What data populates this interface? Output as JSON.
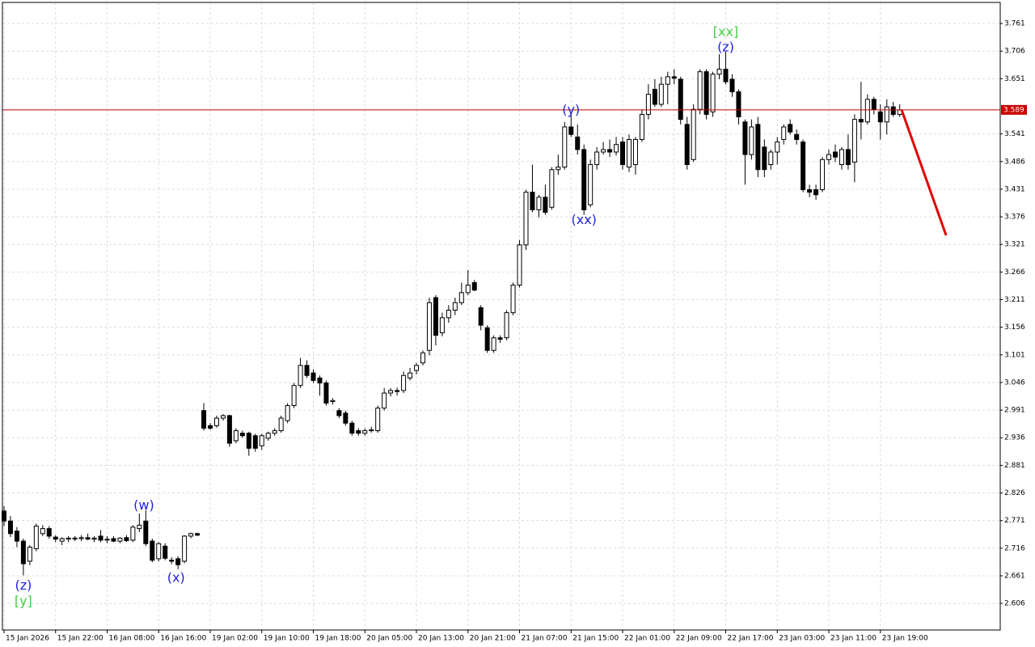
{
  "chart_data": {
    "type": "candlestick",
    "categories": [
      "15 Jan 2026",
      null,
      null,
      null,
      null,
      null,
      null,
      null,
      "15 Jan 22:00",
      null,
      null,
      null,
      null,
      null,
      null,
      null,
      "16 Jan 08:00",
      null,
      null,
      null,
      null,
      null,
      null,
      null,
      "16 Jan 16:00",
      null,
      null,
      null,
      null,
      null,
      null,
      null,
      "19 Jan 02:00",
      null,
      null,
      null,
      null,
      null,
      null,
      null,
      "19 Jan 10:00",
      null,
      null,
      null,
      null,
      null,
      null,
      null,
      "19 Jan 18:00",
      null,
      null,
      null,
      null,
      null,
      null,
      null,
      "20 Jan 05:00",
      null,
      null,
      null,
      null,
      null,
      null,
      null,
      "20 Jan 13:00",
      null,
      null,
      null,
      null,
      null,
      null,
      null,
      "20 Jan 21:00",
      null,
      null,
      null,
      null,
      null,
      null,
      null,
      "21 Jan 07:00",
      null,
      null,
      null,
      null,
      null,
      null,
      null,
      "21 Jan 15:00",
      null,
      null,
      null,
      null,
      null,
      null,
      null,
      "22 Jan 01:00",
      null,
      null,
      null,
      null,
      null,
      null,
      null,
      "22 Jan 09:00",
      null,
      null,
      null,
      null,
      null,
      null,
      null,
      "22 Jan 17:00",
      null,
      null,
      null,
      null,
      null,
      null,
      null,
      "23 Jan 03:00",
      null,
      null,
      null,
      null,
      null,
      null,
      null,
      "23 Jan 11:00",
      null,
      null,
      null,
      null,
      null,
      null,
      null,
      "23 Jan 19:00",
      null,
      null,
      null
    ],
    "values": [
      [
        2.79,
        2.8,
        2.76,
        2.77
      ],
      [
        2.77,
        2.78,
        2.738,
        2.745
      ],
      [
        2.75,
        2.758,
        2.718,
        2.73
      ],
      [
        2.73,
        2.735,
        2.662,
        2.685
      ],
      [
        2.69,
        2.722,
        2.682,
        2.718
      ],
      [
        2.715,
        2.765,
        2.71,
        2.76
      ],
      [
        2.745,
        2.762,
        2.74,
        2.755
      ],
      [
        2.755,
        2.76,
        2.735,
        2.74
      ],
      [
        2.738,
        2.742,
        2.728,
        2.734
      ],
      [
        2.73,
        2.738,
        2.722,
        2.735
      ],
      [
        2.734,
        2.74,
        2.728,
        2.736
      ],
      [
        2.736,
        2.74,
        2.73,
        2.735
      ],
      [
        2.735,
        2.742,
        2.73,
        2.737
      ],
      [
        2.737,
        2.745,
        2.732,
        2.734
      ],
      [
        2.734,
        2.74,
        2.728,
        2.736
      ],
      [
        2.74,
        2.752,
        2.728,
        2.732
      ],
      [
        2.732,
        2.74,
        2.726,
        2.734
      ],
      [
        2.735,
        2.74,
        2.728,
        2.73
      ],
      [
        2.73,
        2.738,
        2.726,
        2.736
      ],
      [
        2.737,
        2.742,
        2.728,
        2.731
      ],
      [
        2.732,
        2.762,
        2.728,
        2.758
      ],
      [
        2.755,
        2.785,
        2.748,
        2.762
      ],
      [
        2.77,
        2.792,
        2.72,
        2.725
      ],
      [
        2.73,
        2.735,
        2.688,
        2.692
      ],
      [
        2.695,
        2.728,
        2.69,
        2.725
      ],
      [
        2.72,
        2.726,
        2.692,
        2.696
      ],
      [
        2.692,
        2.698,
        2.684,
        2.69
      ],
      [
        2.695,
        2.7,
        2.674,
        2.683
      ],
      [
        2.69,
        2.742,
        2.686,
        2.74
      ],
      [
        2.74,
        2.747,
        2.736,
        2.745
      ],
      [
        2.745,
        2.747,
        2.74,
        2.742
      ],
      [
        2.99,
        3.005,
        2.95,
        2.955
      ],
      [
        2.96,
        2.965,
        2.952,
        2.955
      ],
      [
        2.96,
        2.98,
        2.956,
        2.975
      ],
      [
        2.975,
        2.983,
        2.97,
        2.98
      ],
      [
        2.98,
        2.982,
        2.918,
        2.925
      ],
      [
        2.93,
        2.955,
        2.925,
        2.95
      ],
      [
        2.945,
        2.95,
        2.936,
        2.94
      ],
      [
        2.945,
        2.948,
        2.9,
        2.915
      ],
      [
        2.94,
        2.944,
        2.908,
        2.915
      ],
      [
        2.92,
        2.944,
        2.912,
        2.94
      ],
      [
        2.935,
        2.948,
        2.93,
        2.945
      ],
      [
        2.945,
        2.955,
        2.94,
        2.95
      ],
      [
        2.95,
        2.98,
        2.946,
        2.975
      ],
      [
        2.97,
        3.005,
        2.965,
        3.0
      ],
      [
        3.0,
        3.045,
        2.995,
        3.04
      ],
      [
        3.04,
        3.095,
        3.035,
        3.08
      ],
      [
        3.08,
        3.09,
        3.055,
        3.06
      ],
      [
        3.065,
        3.072,
        3.045,
        3.05
      ],
      [
        3.055,
        3.06,
        3.02,
        3.045
      ],
      [
        3.045,
        3.05,
        3.0,
        3.005
      ],
      [
        3.008,
        3.015,
        3.002,
        3.01
      ],
      [
        2.99,
        2.995,
        2.975,
        2.98
      ],
      [
        2.985,
        2.99,
        2.96,
        2.965
      ],
      [
        2.965,
        2.97,
        2.94,
        2.945
      ],
      [
        2.95,
        2.955,
        2.94,
        2.945
      ],
      [
        2.945,
        2.955,
        2.94,
        2.95
      ],
      [
        2.95,
        2.958,
        2.946,
        2.952
      ],
      [
        2.95,
        3.0,
        2.946,
        2.995
      ],
      [
        2.995,
        3.035,
        2.99,
        3.025
      ],
      [
        3.025,
        3.035,
        3.018,
        3.03
      ],
      [
        3.03,
        3.036,
        3.02,
        3.028
      ],
      [
        3.03,
        3.068,
        3.025,
        3.06
      ],
      [
        3.055,
        3.075,
        3.05,
        3.065
      ],
      [
        3.07,
        3.085,
        3.062,
        3.08
      ],
      [
        3.085,
        3.11,
        3.08,
        3.105
      ],
      [
        3.11,
        3.215,
        3.1,
        3.205
      ],
      [
        3.215,
        3.22,
        3.12,
        3.14
      ],
      [
        3.145,
        3.185,
        3.138,
        3.175
      ],
      [
        3.175,
        3.2,
        3.165,
        3.19
      ],
      [
        3.19,
        3.215,
        3.18,
        3.205
      ],
      [
        3.205,
        3.245,
        3.2,
        3.225
      ],
      [
        3.225,
        3.27,
        3.22,
        3.24
      ],
      [
        3.245,
        3.25,
        3.228,
        3.23
      ],
      [
        3.195,
        3.2,
        3.15,
        3.16
      ],
      [
        3.155,
        3.16,
        3.105,
        3.11
      ],
      [
        3.11,
        3.14,
        3.105,
        3.135
      ],
      [
        3.135,
        3.14,
        3.125,
        3.132
      ],
      [
        3.135,
        3.19,
        3.13,
        3.185
      ],
      [
        3.185,
        3.245,
        3.18,
        3.24
      ],
      [
        3.24,
        3.33,
        3.235,
        3.32
      ],
      [
        3.32,
        3.43,
        3.31,
        3.425
      ],
      [
        3.425,
        3.48,
        3.385,
        3.39
      ],
      [
        3.39,
        3.42,
        3.375,
        3.415
      ],
      [
        3.415,
        3.44,
        3.38,
        3.385
      ],
      [
        3.395,
        3.475,
        3.39,
        3.47
      ],
      [
        3.47,
        3.5,
        3.46,
        3.475
      ],
      [
        3.475,
        3.565,
        3.47,
        3.555
      ],
      [
        3.555,
        3.58,
        3.535,
        3.54
      ],
      [
        3.535,
        3.56,
        3.5,
        3.51
      ],
      [
        3.51,
        3.52,
        3.38,
        3.39
      ],
      [
        3.4,
        3.49,
        3.395,
        3.48
      ],
      [
        3.48,
        3.515,
        3.47,
        3.505
      ],
      [
        3.505,
        3.525,
        3.5,
        3.51
      ],
      [
        3.51,
        3.53,
        3.495,
        3.505
      ],
      [
        3.505,
        3.535,
        3.498,
        3.52
      ],
      [
        3.525,
        3.535,
        3.47,
        3.48
      ],
      [
        3.475,
        3.54,
        3.465,
        3.53
      ],
      [
        3.48,
        3.535,
        3.46,
        3.53
      ],
      [
        3.53,
        3.59,
        3.525,
        3.58
      ],
      [
        3.58,
        3.64,
        3.57,
        3.62
      ],
      [
        3.63,
        3.65,
        3.595,
        3.6
      ],
      [
        3.6,
        3.655,
        3.595,
        3.64
      ],
      [
        3.64,
        3.665,
        3.6,
        3.655
      ],
      [
        3.655,
        3.67,
        3.64,
        3.652
      ],
      [
        3.65,
        3.655,
        3.56,
        3.57
      ],
      [
        3.56,
        3.575,
        3.47,
        3.48
      ],
      [
        3.49,
        3.6,
        3.485,
        3.59
      ],
      [
        3.59,
        3.67,
        3.58,
        3.665
      ],
      [
        3.665,
        3.67,
        3.57,
        3.58
      ],
      [
        3.585,
        3.665,
        3.575,
        3.66
      ],
      [
        3.66,
        3.7,
        3.65,
        3.67
      ],
      [
        3.67,
        3.705,
        3.64,
        3.645
      ],
      [
        3.65,
        3.66,
        3.615,
        3.625
      ],
      [
        3.625,
        3.63,
        3.56,
        3.575
      ],
      [
        3.565,
        3.57,
        3.44,
        3.5
      ],
      [
        3.5,
        3.57,
        3.49,
        3.555
      ],
      [
        3.56,
        3.575,
        3.455,
        3.47
      ],
      [
        3.515,
        3.53,
        3.455,
        3.47
      ],
      [
        3.48,
        3.51,
        3.47,
        3.505
      ],
      [
        3.505,
        3.535,
        3.48,
        3.525
      ],
      [
        3.53,
        3.56,
        3.52,
        3.555
      ],
      [
        3.56,
        3.57,
        3.54,
        3.545
      ],
      [
        3.54,
        3.55,
        3.52,
        3.53
      ],
      [
        3.525,
        3.53,
        3.425,
        3.43
      ],
      [
        3.43,
        3.44,
        3.415,
        3.425
      ],
      [
        3.43,
        3.44,
        3.41,
        3.42
      ],
      [
        3.43,
        3.495,
        3.425,
        3.49
      ],
      [
        3.49,
        3.51,
        3.48,
        3.5
      ],
      [
        3.505,
        3.52,
        3.485,
        3.495
      ],
      [
        3.48,
        3.515,
        3.47,
        3.51
      ],
      [
        3.51,
        3.54,
        3.47,
        3.48
      ],
      [
        3.485,
        3.58,
        3.445,
        3.57
      ],
      [
        3.57,
        3.645,
        3.53,
        3.565
      ],
      [
        3.565,
        3.62,
        3.56,
        3.61
      ],
      [
        3.61,
        3.615,
        3.58,
        3.59
      ],
      [
        3.585,
        3.6,
        3.53,
        3.565
      ],
      [
        3.565,
        3.61,
        3.54,
        3.595
      ],
      [
        3.595,
        3.605,
        3.575,
        3.58
      ],
      [
        3.58,
        3.6,
        3.575,
        3.589
      ]
    ],
    "xlim": [
      -0.25,
      154.6
    ],
    "ylim": [
      2.553,
      3.803
    ],
    "yticks": [
      3.761,
      3.706,
      3.651,
      3.541,
      3.486,
      3.431,
      3.376,
      3.321,
      3.266,
      3.211,
      3.156,
      3.101,
      3.046,
      2.991,
      2.936,
      2.881,
      2.826,
      2.771,
      2.716,
      2.661,
      2.606
    ],
    "grid": true,
    "up_color": "#ffffff",
    "down_color": "#000000",
    "last_price": 3.589,
    "last_price_color": "#c80000",
    "projection": {
      "color": "#e00000",
      "x": [
        139.3,
        146.2
      ],
      "values": [
        3.589,
        3.339
      ]
    },
    "annotations": [
      {
        "text": "(z)",
        "color": "#2222dd",
        "x": 3,
        "y": 2.641
      },
      {
        "text": "[y]",
        "color": "#44cc44",
        "x": 3,
        "y": 2.609
      },
      {
        "text": "(w)",
        "color": "#2222dd",
        "x": 21.7,
        "y": 2.8
      },
      {
        "text": "(x)",
        "color": "#2222dd",
        "x": 26.7,
        "y": 2.656
      },
      {
        "text": "(y)",
        "color": "#2222dd",
        "x": 88,
        "y": 3.588
      },
      {
        "text": "(xx)",
        "color": "#2222dd",
        "x": 90,
        "y": 3.369
      },
      {
        "text": "[xx]",
        "color": "#44cc44",
        "x": 112,
        "y": 3.743
      },
      {
        "text": "(z)",
        "color": "#2222dd",
        "x": 112,
        "y": 3.713
      }
    ]
  }
}
